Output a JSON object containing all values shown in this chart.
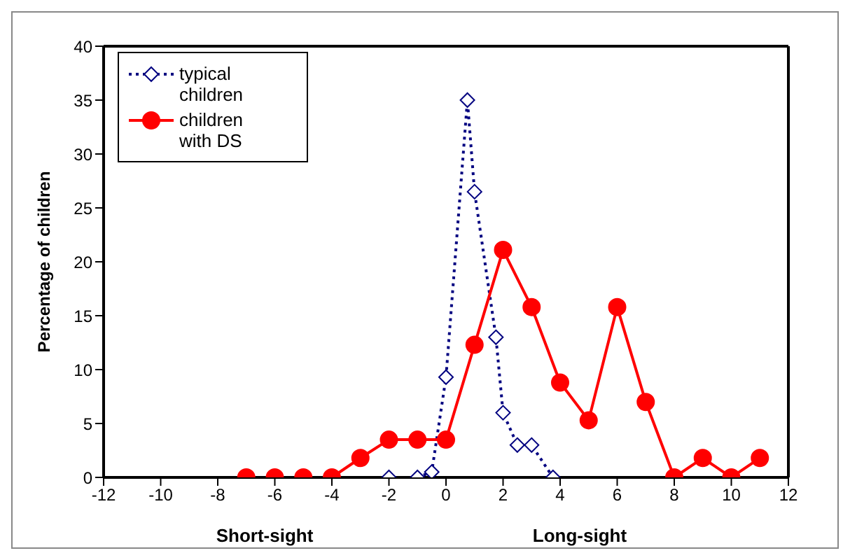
{
  "chart_data": {
    "type": "line",
    "ylabel": "Percentage of children",
    "annotations": [
      "Short-sight",
      "Long-sight"
    ],
    "xlim": [
      -12,
      12
    ],
    "xticks": [
      -12,
      -10,
      -8,
      -6,
      -4,
      -2,
      0,
      2,
      4,
      6,
      8,
      10,
      12
    ],
    "ylim": [
      0,
      40
    ],
    "yticks": [
      0,
      5,
      10,
      15,
      20,
      25,
      30,
      35,
      40
    ],
    "legend": "top left",
    "series": [
      {
        "name": "typical children",
        "color": "#000080",
        "marker": "diamond",
        "line_style": "dotted",
        "x": [
          -2,
          -1,
          -0.5,
          0,
          0.75,
          1,
          1.75,
          2,
          2.5,
          3,
          3.75
        ],
        "values": [
          0,
          0,
          0.5,
          9.3,
          35,
          26.5,
          13,
          6,
          3,
          3,
          0
        ]
      },
      {
        "name": "children with DS",
        "color": "#ff0000",
        "marker": "circle",
        "line_style": "solid",
        "x": [
          -7,
          -6,
          -5,
          -4,
          -3,
          -2,
          -1,
          0,
          1,
          2,
          3,
          4,
          5,
          6,
          7,
          8,
          9,
          10,
          11
        ],
        "values": [
          0,
          0,
          0,
          0,
          1.8,
          3.5,
          3.5,
          3.5,
          12.3,
          21.1,
          15.8,
          8.8,
          5.3,
          15.8,
          7,
          0,
          1.8,
          0,
          1.8
        ]
      }
    ]
  }
}
